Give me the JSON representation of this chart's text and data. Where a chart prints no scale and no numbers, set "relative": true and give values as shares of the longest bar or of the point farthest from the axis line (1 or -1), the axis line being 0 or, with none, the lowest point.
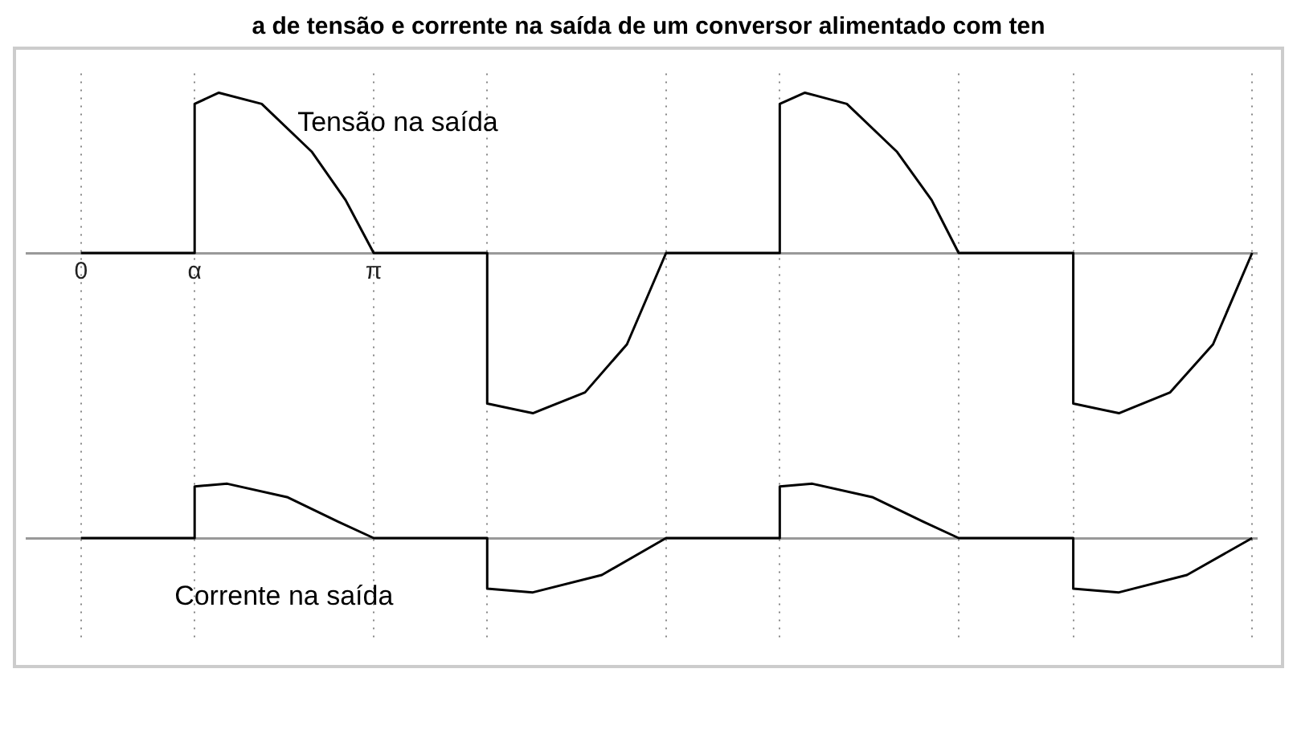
{
  "chart_data": [
    {
      "type": "line",
      "title": "a de tensão e corrente na saída de um conversor alimentado com ten",
      "relative": true,
      "xlim": [
        -0.58,
        12.62
      ],
      "xticks": [
        0,
        {
          "value": 1.22,
          "label": "α"
        },
        {
          "value": 3.14159,
          "label": "π"
        },
        {
          "value": 4.36,
          "label": null
        },
        {
          "value": 6.28,
          "label": null
        },
        {
          "value": 7.5,
          "label": null
        },
        {
          "value": 9.42,
          "label": null
        },
        {
          "value": 10.65,
          "label": null
        },
        {
          "value": 12.57,
          "label": null
        }
      ],
      "grid": "x",
      "series": [
        {
          "name": "Tensão na saída",
          "color": "#000000",
          "x": [
            0,
            1.22,
            1.22,
            1.48,
            1.94,
            2.48,
            2.84,
            3.14159,
            4.36,
            4.36,
            4.85,
            5.41,
            5.86,
            6.28,
            7.5,
            7.5,
            7.77,
            8.22,
            8.76,
            9.13,
            9.42,
            10.65,
            10.65,
            11.14,
            11.69,
            12.15,
            12.57
          ],
          "values": [
            0,
            0,
            0.93,
            1,
            0.93,
            0.63,
            0.33,
            0,
            0,
            -0.94,
            -1,
            -0.87,
            -0.57,
            0,
            0,
            0.93,
            1,
            0.93,
            0.63,
            0.33,
            0,
            0,
            -0.94,
            -1,
            -0.87,
            -0.57,
            0
          ]
        }
      ]
    },
    {
      "type": "line",
      "relative": true,
      "xlim": [
        -0.58,
        12.62
      ],
      "xticks": [
        0,
        1.22,
        3.14159,
        4.36,
        6.28,
        7.5,
        9.42,
        10.65,
        12.57
      ],
      "grid": "x",
      "tick_labels": false,
      "series": [
        {
          "name": "Corrente na saída",
          "color": "#000000",
          "x": [
            0,
            1.22,
            1.22,
            1.57,
            2.22,
            2.76,
            3.14159,
            4.36,
            4.36,
            4.85,
            5.59,
            6.28,
            7.5,
            7.5,
            7.85,
            8.5,
            9.04,
            9.42,
            10.65,
            10.65,
            11.14,
            11.87,
            12.57
          ],
          "values": [
            0,
            0,
            0.95,
            1,
            0.75,
            0.3,
            0,
            0,
            -0.93,
            -1,
            -0.68,
            0,
            0,
            0.95,
            1,
            0.75,
            0.3,
            0,
            0,
            -0.93,
            -1,
            -0.68,
            0
          ]
        }
      ]
    }
  ]
}
